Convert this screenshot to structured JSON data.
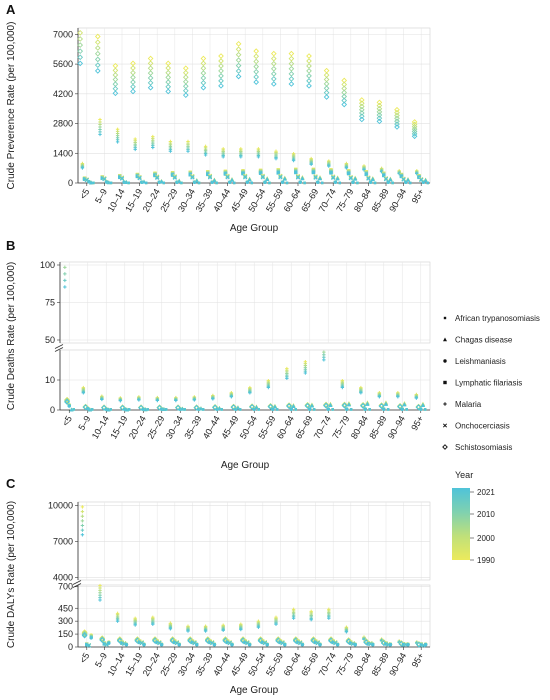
{
  "chart_data": [
    {
      "panel": "A",
      "type": "scatter",
      "categories": [
        "<5",
        "5–9",
        "10–14",
        "15–19",
        "20–24",
        "25–29",
        "30–34",
        "35–39",
        "40–44",
        "45–49",
        "50–54",
        "55–59",
        "60–64",
        "65–69",
        "70–74",
        "75–79",
        "80–84",
        "85–89",
        "90–94",
        "95+"
      ],
      "xlabel": "Age Group",
      "ylabel": "Crude Preverence Rate (per 100,000)",
      "yticks": [
        0,
        1400,
        2800,
        4200,
        5600,
        7000
      ],
      "ylim": [
        0,
        7300
      ],
      "series": [
        {
          "name": "Schistosomiasis",
          "marker": "diamond",
          "values": [
            6400,
            6000,
            4800,
            4900,
            5100,
            4900,
            4700,
            5100,
            5200,
            5700,
            5400,
            5300,
            5300,
            5200,
            4600,
            4200,
            3400,
            3300,
            3000,
            2500
          ]
        },
        {
          "name": "Malaria",
          "marker": "plus",
          "values": [
            800,
            2600,
            2200,
            1800,
            1900,
            1700,
            1700,
            1500,
            1400,
            1400,
            1400,
            1300,
            1200,
            1000,
            900,
            800,
            700,
            600,
            500,
            500
          ]
        },
        {
          "name": "Lymphatic filariasis",
          "marker": "square",
          "values": [
            200,
            250,
            300,
            350,
            400,
            420,
            440,
            460,
            480,
            500,
            520,
            540,
            560,
            560,
            540,
            500,
            460,
            400,
            350,
            300
          ]
        },
        {
          "name": "Onchocerciasis",
          "marker": "cross",
          "values": [
            150,
            200,
            230,
            250,
            270,
            280,
            290,
            300,
            300,
            300,
            300,
            300,
            290,
            280,
            270,
            250,
            230,
            200,
            180,
            160
          ]
        },
        {
          "name": "Leishmaniasis",
          "marker": "circle",
          "values": [
            60,
            50,
            40,
            40,
            40,
            40,
            40,
            40,
            40,
            40,
            40,
            40,
            40,
            40,
            40,
            40,
            40,
            40,
            40,
            40
          ]
        },
        {
          "name": "Chagas disease",
          "marker": "triangle",
          "values": [
            20,
            30,
            40,
            60,
            80,
            100,
            120,
            140,
            160,
            180,
            200,
            220,
            240,
            240,
            230,
            220,
            200,
            180,
            160,
            140
          ]
        },
        {
          "name": "African trypanosomiasis",
          "marker": "square-small",
          "values": [
            5,
            5,
            5,
            5,
            5,
            5,
            5,
            5,
            5,
            5,
            5,
            5,
            5,
            5,
            5,
            5,
            5,
            5,
            5,
            5
          ]
        }
      ]
    },
    {
      "panel": "B",
      "type": "scatter",
      "categories": [
        "<5",
        "5–9",
        "10–14",
        "15–19",
        "20–24",
        "25–29",
        "30–34",
        "35–39",
        "40–44",
        "45–49",
        "50–54",
        "55–59",
        "60–64",
        "65–69",
        "70–74",
        "75–79",
        "80–84",
        "85–89",
        "90–94",
        "95+"
      ],
      "xlabel": "Age Group",
      "ylabel": "Crude Deaths Rate (per 100,000)",
      "axis_breaks": [
        {
          "range": [
            48,
            102
          ],
          "ticks": [
            50,
            75,
            100
          ]
        },
        {
          "range": [
            0,
            20
          ],
          "ticks": [
            0,
            10
          ]
        }
      ],
      "series": [
        {
          "name": "Malaria",
          "marker": "plus",
          "values": [
            97,
            6.5,
            4.0,
            3.5,
            3.8,
            3.6,
            3.6,
            3.8,
            4.2,
            5.0,
            6.5,
            8.5,
            12,
            14,
            19,
            8.5,
            6.5,
            5.0,
            5.0,
            4.5
          ]
        },
        {
          "name": "Schistosomiasis",
          "marker": "diamond",
          "values": [
            3.0,
            1.0,
            0.8,
            0.8,
            0.8,
            0.8,
            0.8,
            0.8,
            0.9,
            1.0,
            1.1,
            1.2,
            1.4,
            1.5,
            1.6,
            1.6,
            1.5,
            1.4,
            1.2,
            1.0
          ]
        },
        {
          "name": "Leishmaniasis",
          "marker": "circle",
          "values": [
            1.5,
            0.5,
            0.3,
            0.3,
            0.3,
            0.3,
            0.3,
            0.3,
            0.3,
            0.3,
            0.3,
            0.3,
            0.3,
            0.3,
            0.3,
            0.3,
            0.3,
            0.3,
            0.3,
            0.3
          ]
        },
        {
          "name": "Chagas disease",
          "marker": "triangle",
          "values": [
            0.1,
            0.1,
            0.1,
            0.1,
            0.2,
            0.3,
            0.4,
            0.5,
            0.6,
            0.8,
            1.0,
            1.2,
            1.4,
            1.6,
            1.8,
            2.0,
            2.2,
            2.2,
            2.0,
            1.8
          ]
        },
        {
          "name": "African trypanosomiasis",
          "marker": "square-small",
          "values": [
            0.2,
            0.2,
            0.2,
            0.2,
            0.2,
            0.2,
            0.2,
            0.2,
            0.2,
            0.2,
            0.2,
            0.2,
            0.2,
            0.2,
            0.2,
            0.2,
            0.2,
            0.2,
            0.2,
            0.2
          ]
        }
      ]
    },
    {
      "panel": "C",
      "type": "scatter",
      "categories": [
        "<5",
        "5–9",
        "10–14",
        "15–19",
        "20–24",
        "25–29",
        "30–34",
        "35–39",
        "40–44",
        "45–49",
        "50–54",
        "55–59",
        "60–64",
        "65–69",
        "70–74",
        "75–79",
        "80–84",
        "85–89",
        "90–94",
        "95+"
      ],
      "xlabel": "Age Group",
      "ylabel": "Crude DALYs Rate (per 100,000)",
      "axis_breaks": [
        {
          "range": [
            3800,
            10300
          ],
          "ticks": [
            4000,
            7000,
            10000
          ]
        },
        {
          "range": [
            0,
            720
          ],
          "ticks": [
            0,
            150,
            300,
            450,
            700
          ]
        }
      ],
      "series": [
        {
          "name": "Malaria",
          "marker": "plus",
          "values": [
            8600,
            620,
            340,
            290,
            300,
            240,
            210,
            210,
            220,
            230,
            260,
            300,
            380,
            360,
            380,
            200,
            100,
            80,
            60,
            50
          ]
        },
        {
          "name": "Schistosomiasis",
          "marker": "diamond",
          "values": [
            150,
            90,
            80,
            80,
            80,
            80,
            80,
            80,
            80,
            80,
            80,
            80,
            80,
            80,
            80,
            70,
            60,
            50,
            40,
            30
          ]
        },
        {
          "name": "Lymphatic filariasis",
          "marker": "square",
          "values": [
            30,
            40,
            50,
            60,
            60,
            60,
            60,
            60,
            60,
            60,
            60,
            60,
            60,
            60,
            60,
            50,
            40,
            40,
            30,
            30
          ]
        },
        {
          "name": "Onchocerciasis",
          "marker": "cross",
          "values": [
            20,
            30,
            40,
            50,
            50,
            50,
            50,
            50,
            50,
            50,
            50,
            50,
            50,
            50,
            50,
            40,
            40,
            30,
            30,
            20
          ]
        },
        {
          "name": "Leishmaniasis",
          "marker": "circle",
          "values": [
            120,
            50,
            30,
            30,
            30,
            30,
            30,
            30,
            30,
            30,
            30,
            30,
            30,
            30,
            30,
            30,
            30,
            30,
            30,
            30
          ]
        }
      ]
    }
  ],
  "panel_letters": [
    "A",
    "B",
    "C"
  ],
  "legend_shapes": {
    "entries": [
      {
        "label": "African trypanosomiasis",
        "marker": "square-small"
      },
      {
        "label": "Chagas disease",
        "marker": "triangle"
      },
      {
        "label": "Leishmaniasis",
        "marker": "circle"
      },
      {
        "label": "Lymphatic filariasis",
        "marker": "square"
      },
      {
        "label": "Malaria",
        "marker": "plus"
      },
      {
        "label": "Onchocerciasis",
        "marker": "cross"
      },
      {
        "label": "Schistosomiasis",
        "marker": "diamond"
      }
    ]
  },
  "legend_year": {
    "title": "Year",
    "ticks": [
      2021,
      2010,
      2000,
      1990
    ],
    "colors": [
      "#4fc3d9",
      "#7fd1b0",
      "#bfe07a",
      "#ecea5c"
    ]
  }
}
